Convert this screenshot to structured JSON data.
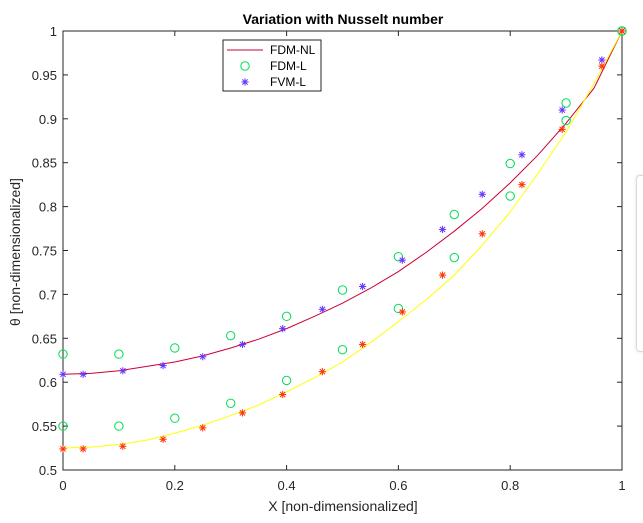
{
  "chart_data": {
    "type": "line",
    "title": "Variation with Nusselt number",
    "xlabel": "X [non-dimensionalized]",
    "ylabel": "θ  [non-dimensionalized]",
    "xlim": [
      0,
      1
    ],
    "ylim": [
      0.5,
      1
    ],
    "xticks": [
      0,
      0.2,
      0.4,
      0.6,
      0.8,
      1
    ],
    "yticks": [
      0.5,
      0.55,
      0.6,
      0.65,
      0.7,
      0.75,
      0.8,
      0.85,
      0.9,
      0.95,
      1
    ],
    "xtick_labels": [
      "0",
      "0.2",
      "0.4",
      "0.6",
      "0.8",
      "1"
    ],
    "ytick_labels": [
      "0.5",
      "0.55",
      "0.6",
      "0.65",
      "0.7",
      "0.75",
      "0.8",
      "0.85",
      "0.9",
      "0.95",
      "1"
    ],
    "grid": false,
    "legend": {
      "placement": "top-left",
      "entries": [
        {
          "label": "FDM-NL",
          "marker": "line",
          "color": "#cc0033"
        },
        {
          "label": "FDM-L",
          "marker": "circle",
          "color": "#00dd55"
        },
        {
          "label": "FVM-L",
          "marker": "asterisk",
          "color": "#6633ff"
        }
      ]
    },
    "series": [
      {
        "legend_index": 0,
        "style": "line",
        "color": "#cc0033",
        "x": [
          0,
          0.05,
          0.1,
          0.15,
          0.2,
          0.25,
          0.3,
          0.35,
          0.4,
          0.45,
          0.5,
          0.55,
          0.6,
          0.65,
          0.7,
          0.75,
          0.8,
          0.85,
          0.9,
          0.95,
          1
        ],
        "y": [
          0.609,
          0.61,
          0.613,
          0.618,
          0.623,
          0.63,
          0.639,
          0.649,
          0.661,
          0.675,
          0.69,
          0.707,
          0.726,
          0.748,
          0.772,
          0.798,
          0.827,
          0.859,
          0.895,
          0.935,
          1.0
        ]
      },
      {
        "legend_index": 1,
        "style": "circle",
        "color": "#00dd55",
        "x": [
          0,
          0.1,
          0.2,
          0.3,
          0.4,
          0.5,
          0.6,
          0.7,
          0.8,
          0.9,
          1
        ],
        "y": [
          0.632,
          0.632,
          0.639,
          0.653,
          0.675,
          0.705,
          0.743,
          0.791,
          0.849,
          0.918,
          1.0
        ]
      },
      {
        "legend_index": 2,
        "style": "asterisk",
        "color": "#6633ff",
        "x": [
          0,
          0.036,
          0.107,
          0.179,
          0.25,
          0.321,
          0.393,
          0.464,
          0.536,
          0.607,
          0.679,
          0.75,
          0.821,
          0.893,
          0.964,
          1
        ],
        "y": [
          0.609,
          0.609,
          0.613,
          0.619,
          0.629,
          0.643,
          0.661,
          0.683,
          0.709,
          0.739,
          0.774,
          0.814,
          0.859,
          0.91,
          0.967,
          1.0
        ]
      },
      {
        "style": "line",
        "color": "#ffff00",
        "x": [
          0,
          0.05,
          0.1,
          0.15,
          0.2,
          0.25,
          0.3,
          0.35,
          0.4,
          0.45,
          0.5,
          0.55,
          0.6,
          0.65,
          0.7,
          0.75,
          0.8,
          0.85,
          0.9,
          0.95,
          1
        ],
        "y": [
          0.525,
          0.526,
          0.529,
          0.534,
          0.542,
          0.551,
          0.562,
          0.574,
          0.589,
          0.605,
          0.623,
          0.645,
          0.669,
          0.694,
          0.722,
          0.756,
          0.794,
          0.838,
          0.885,
          0.94,
          1.0
        ]
      },
      {
        "style": "circle",
        "color": "#00dd55",
        "x": [
          0,
          0.1,
          0.2,
          0.3,
          0.4,
          0.5,
          0.6,
          0.7,
          0.8,
          0.9,
          1
        ],
        "y": [
          0.55,
          0.55,
          0.559,
          0.576,
          0.602,
          0.637,
          0.684,
          0.742,
          0.812,
          0.898,
          1.0
        ]
      },
      {
        "style": "asterisk",
        "color": "#ff3300",
        "x": [
          0,
          0.036,
          0.107,
          0.179,
          0.25,
          0.321,
          0.393,
          0.464,
          0.536,
          0.607,
          0.679,
          0.75,
          0.821,
          0.893,
          0.964,
          1
        ],
        "y": [
          0.524,
          0.524,
          0.527,
          0.535,
          0.548,
          0.565,
          0.586,
          0.612,
          0.643,
          0.68,
          0.722,
          0.769,
          0.825,
          0.888,
          0.96,
          1.0
        ]
      }
    ]
  }
}
